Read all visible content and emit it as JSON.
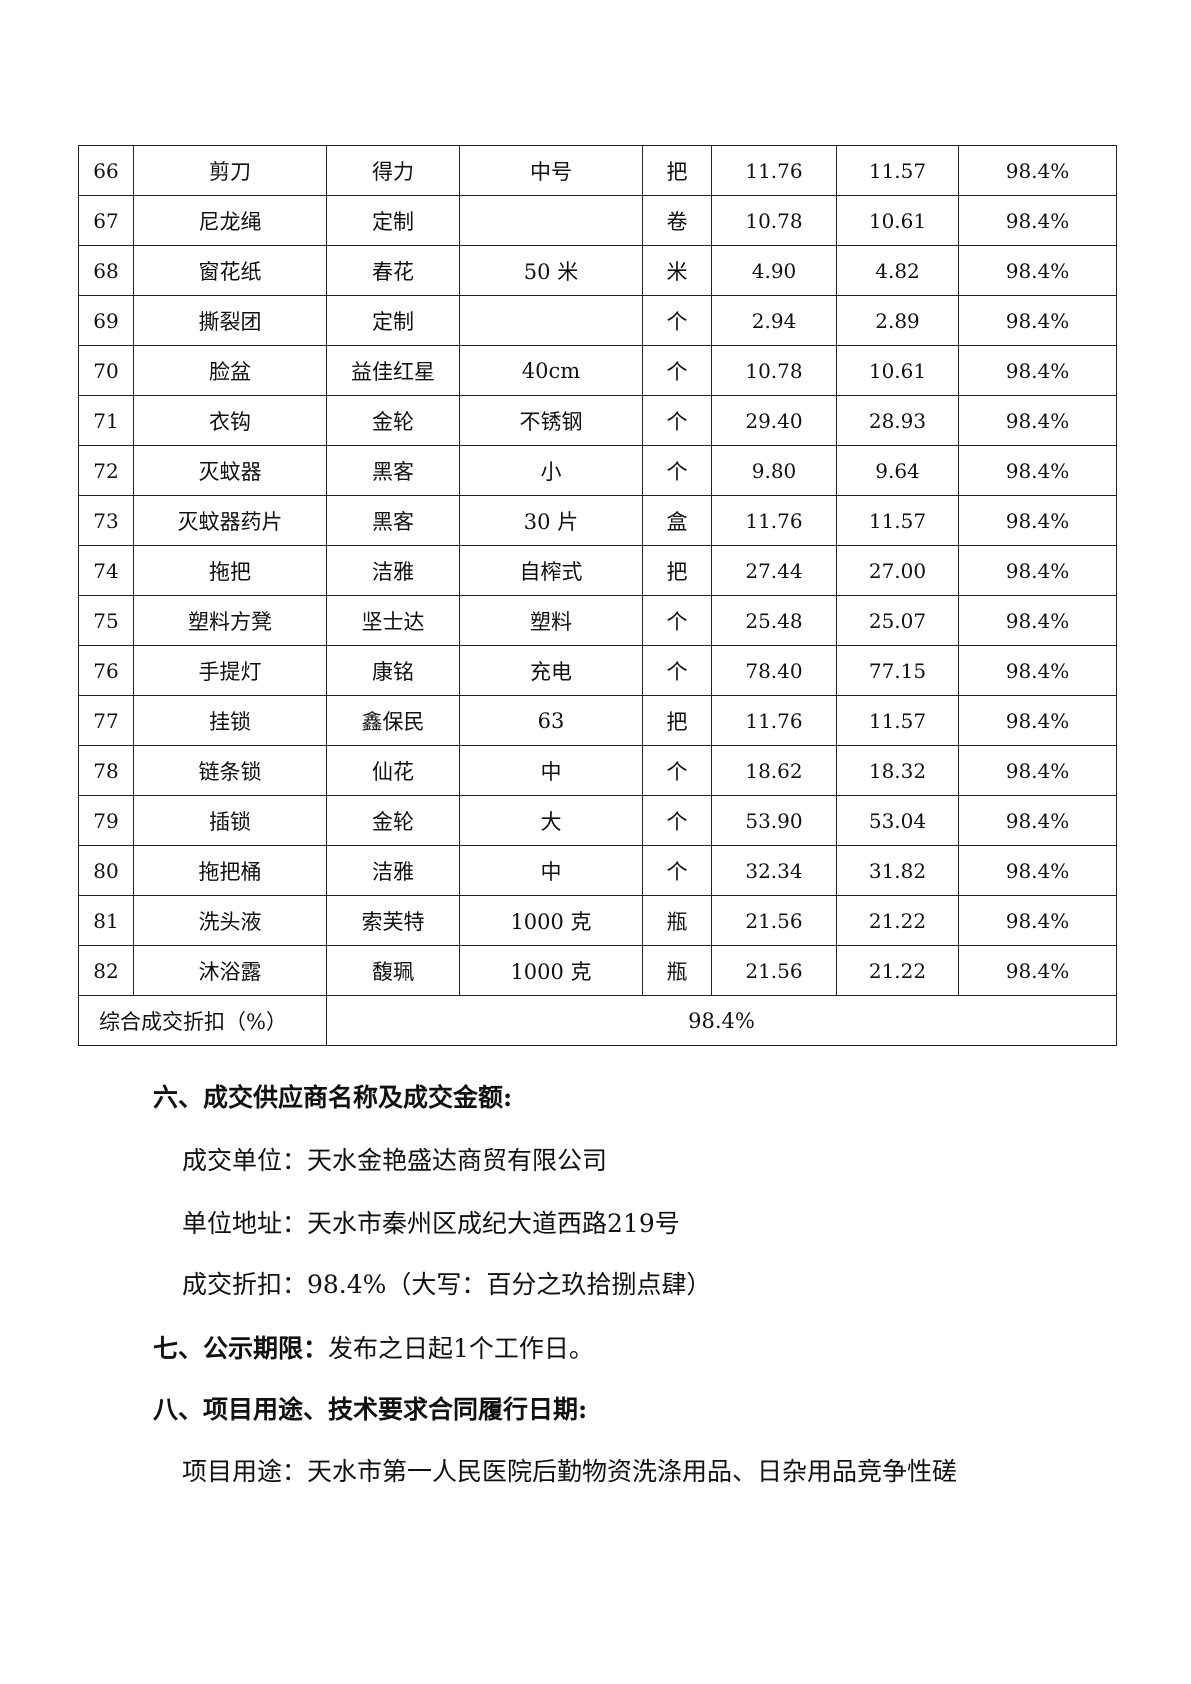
{
  "table": {
    "rows": [
      [
        "66",
        "剪刀",
        "得力",
        "中号",
        "把",
        "11.76",
        "11.57",
        "98.4%"
      ],
      [
        "67",
        "尼龙绳",
        "定制",
        "",
        "卷",
        "10.78",
        "10.61",
        "98.4%"
      ],
      [
        "68",
        "窗花纸",
        "春花",
        "50 米",
        "米",
        "4.90",
        "4.82",
        "98.4%"
      ],
      [
        "69",
        "撕裂团",
        "定制",
        "",
        "个",
        "2.94",
        "2.89",
        "98.4%"
      ],
      [
        "70",
        "脸盆",
        "益佳红星",
        "40cm",
        "个",
        "10.78",
        "10.61",
        "98.4%"
      ],
      [
        "71",
        "衣钩",
        "金轮",
        "不锈钢",
        "个",
        "29.40",
        "28.93",
        "98.4%"
      ],
      [
        "72",
        "灭蚊器",
        "黑客",
        "小",
        "个",
        "9.80",
        "9.64",
        "98.4%"
      ],
      [
        "73",
        "灭蚊器药片",
        "黑客",
        "30 片",
        "盒",
        "11.76",
        "11.57",
        "98.4%"
      ],
      [
        "74",
        "拖把",
        "洁雅",
        "自榨式",
        "把",
        "27.44",
        "27.00",
        "98.4%"
      ],
      [
        "75",
        "塑料方凳",
        "坚士达",
        "塑料",
        "个",
        "25.48",
        "25.07",
        "98.4%"
      ],
      [
        "76",
        "手提灯",
        "康铭",
        "充电",
        "个",
        "78.40",
        "77.15",
        "98.4%"
      ],
      [
        "77",
        "挂锁",
        "鑫保民",
        "63",
        "把",
        "11.76",
        "11.57",
        "98.4%"
      ],
      [
        "78",
        "链条锁",
        "仙花",
        "中",
        "个",
        "18.62",
        "18.32",
        "98.4%"
      ],
      [
        "79",
        "插锁",
        "金轮",
        "大",
        "个",
        "53.90",
        "53.04",
        "98.4%"
      ],
      [
        "80",
        "拖把桶",
        "洁雅",
        "中",
        "个",
        "32.34",
        "31.82",
        "98.4%"
      ],
      [
        "81",
        "洗头液",
        "索芙特",
        "1000 克",
        "瓶",
        "21.56",
        "21.22",
        "98.4%"
      ],
      [
        "82",
        "沐浴露",
        "馥珮",
        "1000 克",
        "瓶",
        "21.56",
        "21.22",
        "98.4%"
      ]
    ],
    "summary_label": "综合成交折扣（%）",
    "summary_value": "98.4%"
  },
  "sections": {
    "s6_title": "六、成交供应商名称及成交金额:",
    "s6_unit": "成交单位：天水金艳盛达商贸有限公司",
    "s6_address": "单位地址：天水市秦州区成纪大道西路219号",
    "s6_discount": "成交折扣：98.4%（大写：百分之玖拾捌点肆）",
    "s7_title": "七、公示期限：",
    "s7_text": "发布之日起1个工作日。",
    "s8_title": "八、项目用途、技术要求合同履行日期:",
    "s8_text": "项目用途：天水市第一人民医院后勤物资洗涤用品、日杂用品竞争性磋"
  }
}
